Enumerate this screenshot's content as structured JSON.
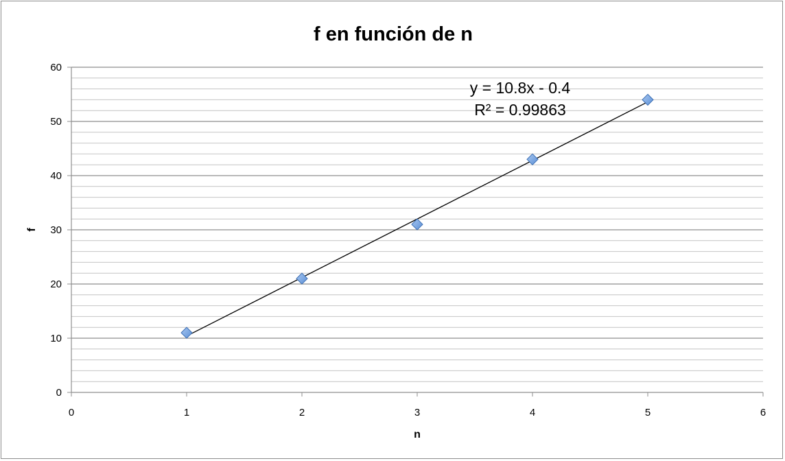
{
  "chart_data": {
    "type": "scatter",
    "title": "f en función de n",
    "xlabel": "n",
    "ylabel": "f",
    "xlim": [
      0,
      6
    ],
    "ylim": [
      0,
      60
    ],
    "x_ticks": [
      0,
      1,
      2,
      3,
      4,
      5,
      6
    ],
    "y_ticks": [
      0,
      10,
      20,
      30,
      40,
      50,
      60
    ],
    "minor_y_step": 2,
    "grid": true,
    "legend": "none",
    "series": [
      {
        "x": [
          1,
          2,
          3,
          4,
          5
        ],
        "y": [
          11,
          21,
          31,
          43,
          54
        ],
        "marker": "diamond",
        "color": "#5b8fd6"
      }
    ],
    "trendline": {
      "type": "linear",
      "slope": 10.8,
      "intercept": -0.4,
      "x_range": [
        1,
        5
      ],
      "equation_label": "y = 10.8x - 0.4",
      "r2_label": "R² = 0.99863",
      "color": "#000000"
    }
  }
}
